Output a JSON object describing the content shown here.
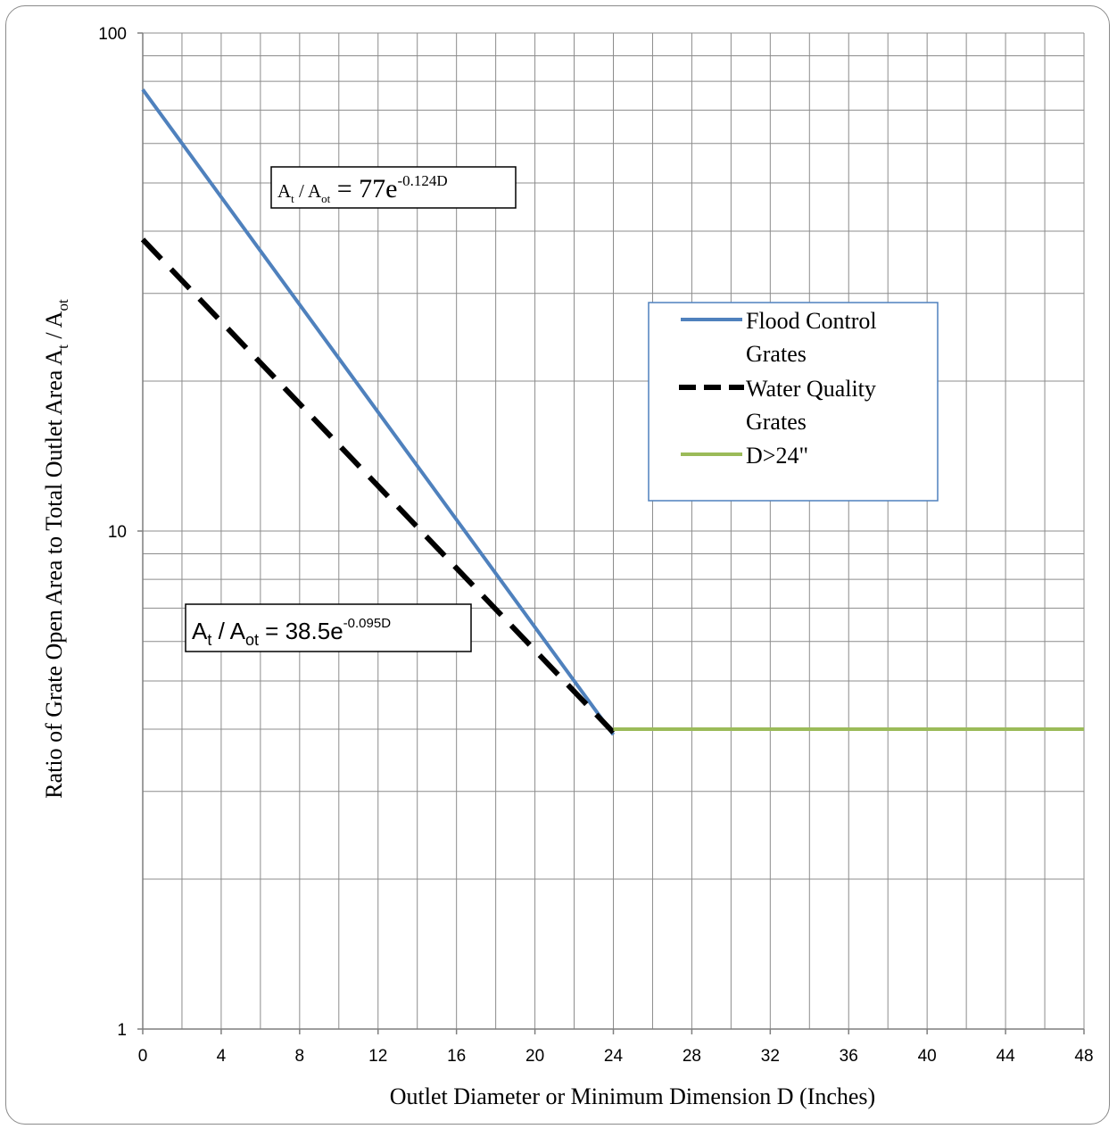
{
  "chart_data": {
    "type": "line",
    "title": "",
    "xlabel": "Outlet Diameter or Minimum Dimension D (Inches)",
    "ylabel": "Ratio of Grate Open Area to Total Outlet Area A_t / A_ot",
    "ylabel_parts": [
      "Ratio of Grate Open Area to Total Outlet Area A",
      "t",
      " / A",
      "ot"
    ],
    "xlim": [
      0,
      48
    ],
    "ylim": [
      1,
      100
    ],
    "yscale": "log",
    "grid": true,
    "x_ticks": [
      "0",
      "4",
      "8",
      "12",
      "16",
      "20",
      "24",
      "28",
      "32",
      "36",
      "40",
      "44",
      "48"
    ],
    "x_tick_values": [
      0,
      4,
      8,
      12,
      16,
      20,
      24,
      28,
      32,
      36,
      40,
      44,
      48
    ],
    "y_ticks": [
      "1",
      "10",
      "100"
    ],
    "y_tick_values": [
      1,
      10,
      100
    ],
    "legend_position": "right",
    "series": [
      {
        "name": "Flood Control Grates",
        "name_lines": [
          "Flood Control",
          "Grates"
        ],
        "color": "#4f81bd",
        "style": "solid",
        "x": [
          0,
          24
        ],
        "y": [
          77,
          3.9
        ]
      },
      {
        "name": "Water Quality Grates",
        "name_lines": [
          "Water Quality",
          "Grates"
        ],
        "color": "#000000",
        "style": "dashed",
        "x": [
          0,
          24
        ],
        "y": [
          38.5,
          3.94
        ]
      },
      {
        "name": "D>24\"",
        "name_lines": [
          "D>24\""
        ],
        "color": "#9bbb59",
        "style": "solid",
        "x": [
          24,
          48
        ],
        "y": [
          4,
          4
        ]
      }
    ],
    "annotations": [
      {
        "id": "flood-equation",
        "base": "A",
        "sub1": "t",
        "mid": " / A",
        "sub2": "ot",
        "eq": " = 77e",
        "exp": "-0.124D",
        "x": 10,
        "y": 54
      },
      {
        "id": "water-equation",
        "base": "A",
        "sub1": "t",
        "mid": " / A",
        "sub2": "ot",
        "eq": " = 38.5e",
        "exp": "-0.095D",
        "x": 5,
        "y": 5.6
      }
    ]
  }
}
